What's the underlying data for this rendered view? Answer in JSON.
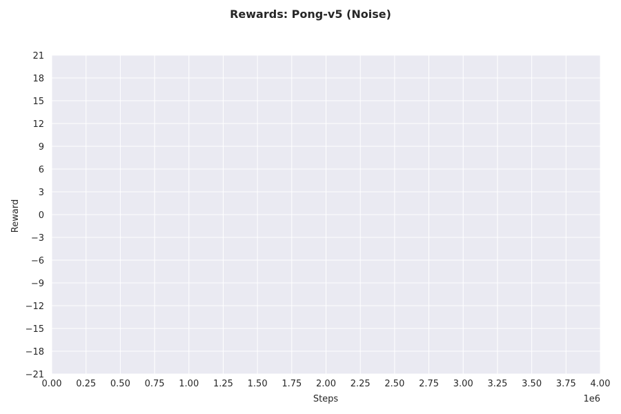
{
  "chart_data": {
    "type": "line",
    "title": "Rewards: Pong-v5 (Noise)",
    "xlabel": "Steps",
    "ylabel": "Reward",
    "x_offset_label": "1e6",
    "xlim": [
      0,
      4000000
    ],
    "ylim": [
      -21,
      21
    ],
    "x_ticks": [
      0,
      250000,
      500000,
      750000,
      1000000,
      1250000,
      1500000,
      1750000,
      2000000,
      2250000,
      2500000,
      2750000,
      3000000,
      3250000,
      3500000,
      3750000,
      4000000
    ],
    "x_tick_labels": [
      "0.00",
      "0.25",
      "0.50",
      "0.75",
      "1.00",
      "1.25",
      "1.50",
      "1.75",
      "2.00",
      "2.25",
      "2.50",
      "2.75",
      "3.00",
      "3.25",
      "3.50",
      "3.75",
      "4.00"
    ],
    "y_ticks": [
      21,
      18,
      15,
      12,
      9,
      6,
      3,
      0,
      -3,
      -6,
      -9,
      -12,
      -15,
      -18,
      -21
    ],
    "y_tick_labels": [
      "21",
      "18",
      "15",
      "12",
      "9",
      "6",
      "3",
      "0",
      "−3",
      "−6",
      "−9",
      "−12",
      "−15",
      "−18",
      "−21"
    ],
    "grid": true,
    "series": [],
    "colors": {
      "plot_background": "#eaeaf2",
      "grid": "#ffffff",
      "text": "#262626"
    }
  }
}
